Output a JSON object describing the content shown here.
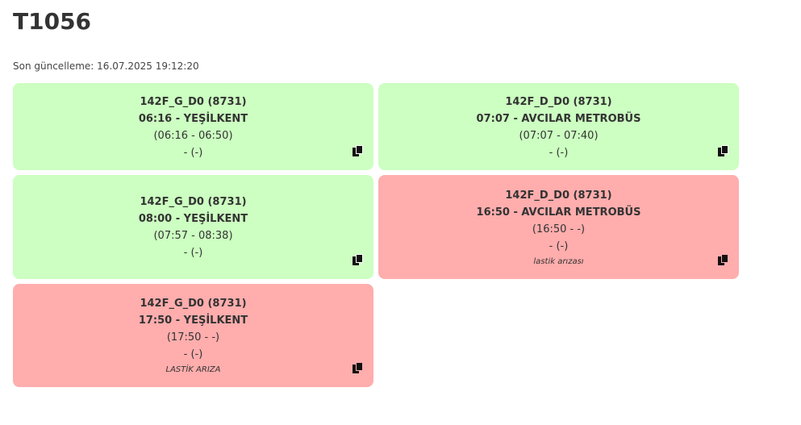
{
  "page": {
    "title": "T1056",
    "last_updated_label": "Son güncelleme: 16.07.2025 19:12:20"
  },
  "colors": {
    "ok_bg": "#ccffc1",
    "fail_bg": "#ffadad"
  },
  "cards": [
    {
      "status": "ok",
      "route": "142F_G_D0 (8731)",
      "departure": "06:16 - YEŞİLKENT",
      "window": "(06:16 - 06:50)",
      "extra": "- (-)",
      "note": "",
      "icon": "copy-icon"
    },
    {
      "status": "ok",
      "route": "142F_D_D0 (8731)",
      "departure": "07:07 - AVCILAR METROBÜS",
      "window": "(07:07 - 07:40)",
      "extra": "- (-)",
      "note": "",
      "icon": "copy-icon"
    },
    {
      "status": "ok",
      "route": "142F_G_D0 (8731)",
      "departure": "08:00 - YEŞİLKENT",
      "window": "(07:57 - 08:38)",
      "extra": "- (-)",
      "note": "",
      "icon": "copy-icon"
    },
    {
      "status": "fail",
      "route": "142F_D_D0 (8731)",
      "departure": "16:50 - AVCILAR METROBÜS",
      "window": "(16:50 - -)",
      "extra": "- (-)",
      "note": "lastik arızası",
      "icon": "copy-icon"
    },
    {
      "status": "fail",
      "route": "142F_G_D0 (8731)",
      "departure": "17:50 - YEŞİLKENT",
      "window": "(17:50 - -)",
      "extra": "- (-)",
      "note": "LASTİK ARIZA",
      "icon": "copy-icon"
    }
  ]
}
